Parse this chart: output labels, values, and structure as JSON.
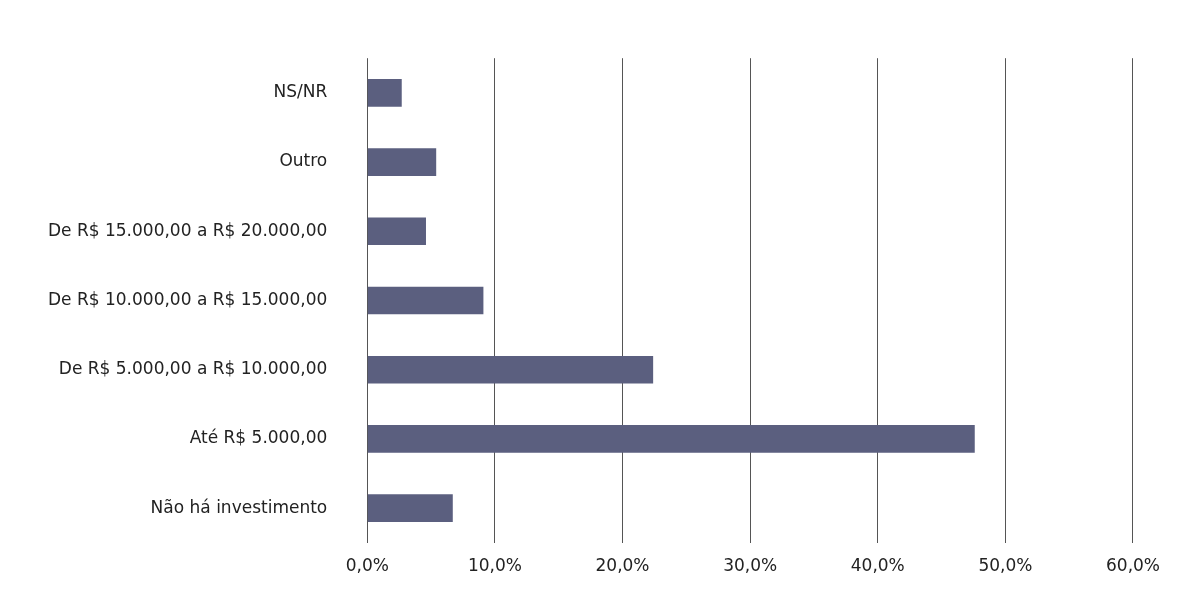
{
  "chart_data": {
    "type": "bar",
    "orientation": "horizontal",
    "categories": [
      "NS/NR",
      "Outro",
      "De R$ 15.000,00 a R$ 20.000,00",
      "De R$ 10.000,00 a R$ 15.000,00",
      "De R$ 5.000,00 a R$ 10.000,00",
      "Até R$ 5.000,00",
      "Não há investimento"
    ],
    "values": [
      2.7,
      5.4,
      4.6,
      9.1,
      22.4,
      47.6,
      6.7
    ],
    "color": "#5b5f7f",
    "xlim": [
      0,
      60
    ],
    "xticks": [
      {
        "value": 0,
        "label": "0,0%"
      },
      {
        "value": 10,
        "label": "10,0%"
      },
      {
        "value": 20,
        "label": "20,0%"
      },
      {
        "value": 30,
        "label": "30,0%"
      },
      {
        "value": 40,
        "label": "40,0%"
      },
      {
        "value": 50,
        "label": "50,0%"
      },
      {
        "value": 60,
        "label": "60,0%"
      }
    ],
    "grid": "x",
    "legend": false
  }
}
